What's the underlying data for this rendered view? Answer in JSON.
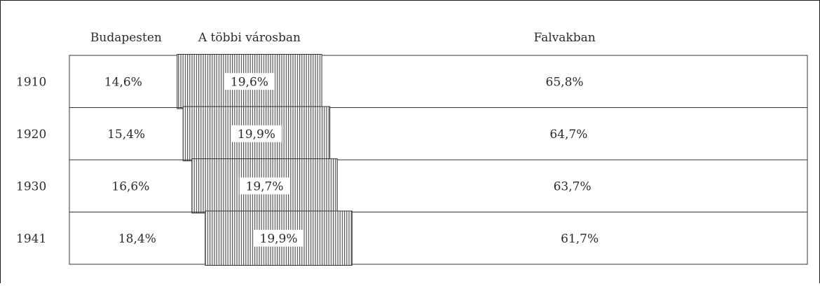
{
  "chart_data": {
    "type": "bar",
    "orientation": "horizontal",
    "stacked": true,
    "percent": true,
    "series_names": [
      "Budapesten",
      "A többi városban",
      "Falvakban"
    ],
    "categories": [
      "1910",
      "1920",
      "1930",
      "1941"
    ],
    "series": [
      {
        "name": "Budapesten",
        "values": [
          14.6,
          15.4,
          16.6,
          18.4
        ],
        "labels": [
          "14,6%",
          "15,4%",
          "16,6%",
          "18,4%"
        ],
        "pattern": "none"
      },
      {
        "name": "A többi városban",
        "values": [
          19.6,
          19.9,
          19.7,
          19.9
        ],
        "labels": [
          "19,6%",
          "19,9%",
          "19,7%",
          "19,9%"
        ],
        "pattern": "vertical-hatch"
      },
      {
        "name": "Falvakban",
        "values": [
          65.8,
          64.7,
          63.7,
          61.7
        ],
        "labels": [
          "65,8%",
          "64,7%",
          "63,7%",
          "61,7%"
        ],
        "pattern": "none"
      }
    ],
    "xlim": [
      0,
      100
    ],
    "legend": "top",
    "grid": false,
    "colors": {
      "stroke": "#333333",
      "hatch": "#4d4d4d",
      "text": "#2b2b2b",
      "background": "#ffffff"
    }
  }
}
